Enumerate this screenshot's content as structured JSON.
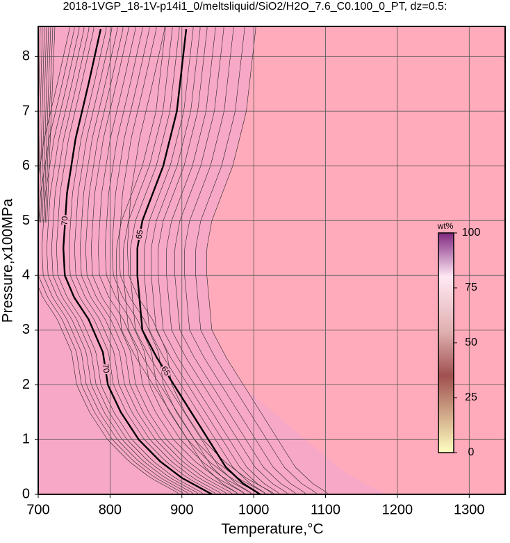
{
  "chart_data": {
    "type": "contour",
    "title": "2018-1VGP_18-1V-p14i1_0/meltsliquid/SiO2/H2O_7.6_C0.100_0_PT, dz=0.5:",
    "xlabel": "Temperature,°C",
    "ylabel": "Pressure,x100MPa",
    "xlim": [
      700,
      1350
    ],
    "ylim": [
      0,
      8.5
    ],
    "xticks": [
      700,
      800,
      900,
      1000,
      1100,
      1200,
      1300
    ],
    "yticks": [
      0,
      1,
      2,
      3,
      4,
      5,
      6,
      7,
      8
    ],
    "grid": true,
    "contours": [
      {
        "level": 70,
        "x": [
          787,
          770,
          752,
          740,
          735,
          737,
          750,
          770,
          790,
          797,
          815,
          840,
          870,
          900,
          942
        ],
        "y": [
          8.5,
          7.5,
          6.5,
          5.5,
          4.5,
          4,
          3.6,
          3.2,
          2.6,
          2,
          1.5,
          1,
          0.6,
          0.3,
          0
        ]
      },
      {
        "level": 65,
        "x": [
          906,
          893,
          874,
          845,
          838,
          838,
          845,
          865,
          889,
          937,
          961,
          985,
          1009
        ],
        "y": [
          8.5,
          7,
          6,
          5,
          4.5,
          4,
          3,
          2.5,
          2,
          1,
          0.5,
          0.2,
          0
        ]
      }
    ],
    "colorbar": {
      "label": "wt%",
      "lim": [
        0,
        100
      ],
      "ticks": [
        0,
        25,
        50,
        75,
        100
      ]
    }
  }
}
